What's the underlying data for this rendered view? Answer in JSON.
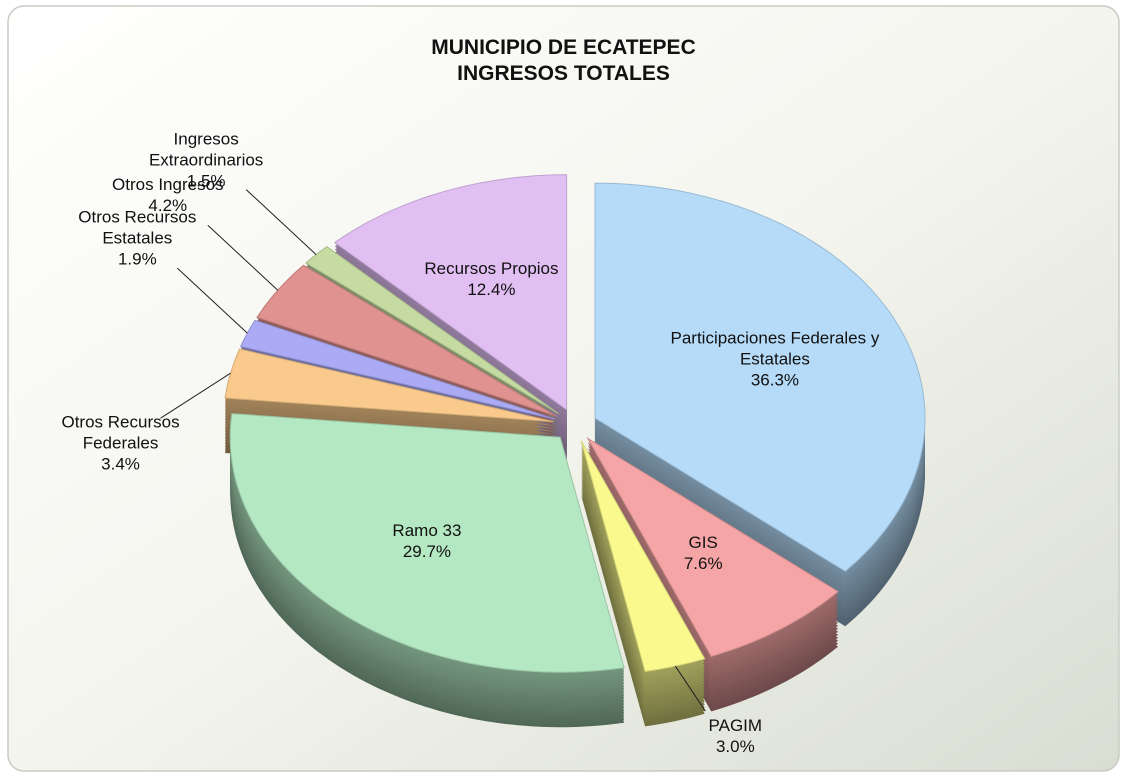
{
  "chart_data": {
    "type": "pie",
    "title": "MUNICIPIO DE ECATEPEC",
    "subtitle": "INGRESOS TOTALES",
    "categories": [
      "Participaciones Federales y Estatales",
      "GIS",
      "PAGIM",
      "Ramo 33",
      "Otros Recursos Federales",
      "Otros Recursos Estatales",
      "Otros Ingresos",
      "Ingresos Extraordinarios",
      "Recursos Propios"
    ],
    "values": [
      36.3,
      7.6,
      3.0,
      29.7,
      3.4,
      1.9,
      4.2,
      1.5,
      12.4
    ],
    "value_labels": [
      "36.3%",
      "7.6%",
      "3.0%",
      "29.7%",
      "3.4%",
      "1.9%",
      "4.2%",
      "1.5%",
      "12.4%"
    ],
    "colors": [
      "#b5dbf8",
      "#f5a5a5",
      "#f9f98e",
      "#b4e8c2",
      "#f9ca8c",
      "#abaaf5",
      "#e09290",
      "#c5dba2",
      "#e1bff3"
    ]
  }
}
